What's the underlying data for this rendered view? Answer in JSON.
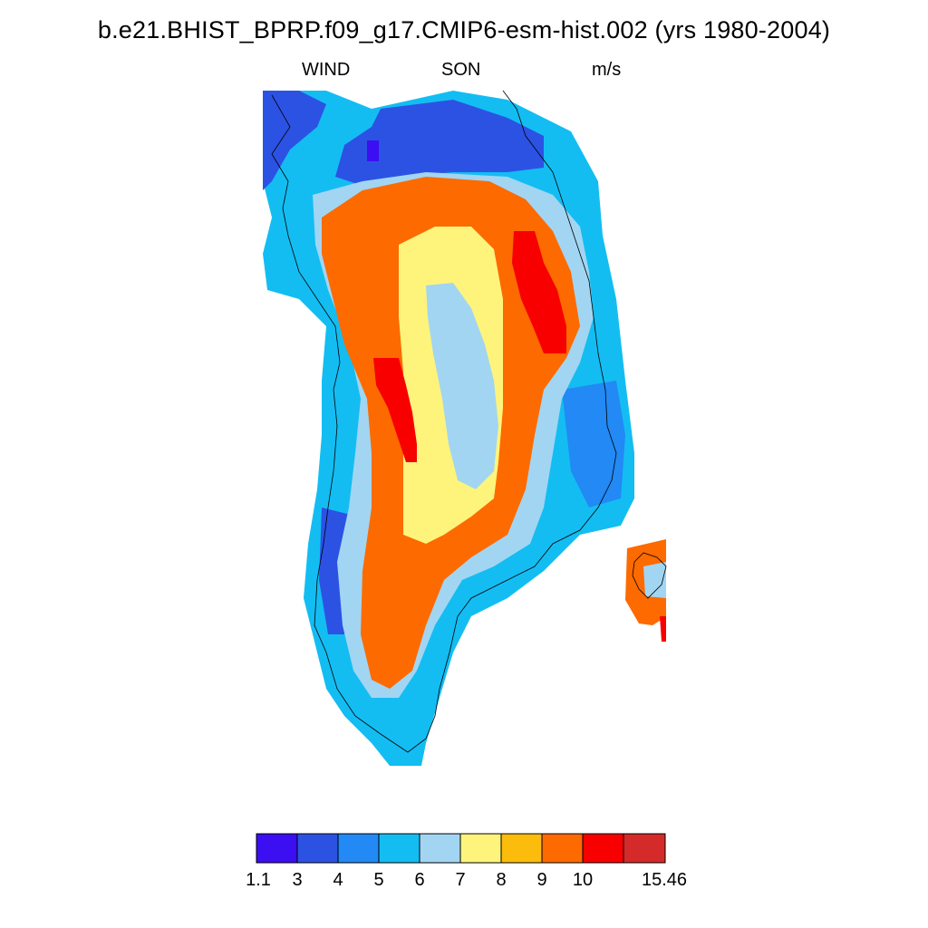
{
  "title": "b.e21.BHIST_BPRP.f09_g17.CMIP6-esm-hist.002 (yrs 1980-2004)",
  "left_label": "WIND",
  "center_label": "SON",
  "right_label": "m/s",
  "colorbar": {
    "colors": [
      "#3c0ef2",
      "#2c52e4",
      "#2289f5",
      "#13bdf2",
      "#a2d5f2",
      "#fef47c",
      "#fcbc0b",
      "#fd6a00",
      "#f80000",
      "#d42a2a"
    ],
    "tick_labels": [
      "1.1",
      "3",
      "4",
      "5",
      "6",
      "7",
      "8",
      "9",
      "10",
      "15.46"
    ]
  },
  "chart_data": {
    "type": "heatmap",
    "variable": "WIND",
    "season": "SON",
    "units": "m/s",
    "levels": [
      1.1,
      3,
      4,
      5,
      6,
      7,
      8,
      9,
      10,
      15.46
    ],
    "region": "Greenland",
    "pattern": "speeds of 3-5 m/s along coasts; 9-10+ m/s on the escarpment slopes; 6-8 m/s over the central interior"
  }
}
